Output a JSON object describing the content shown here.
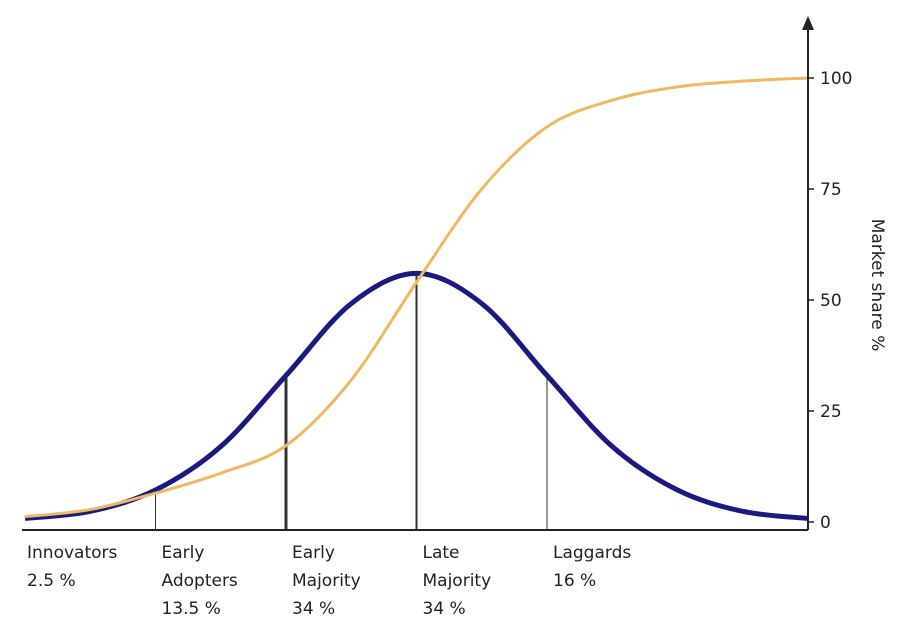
{
  "chart_data": {
    "type": "line",
    "title": "",
    "xlabel": "",
    "ylabel": "Market share %",
    "ylim": [
      0,
      100
    ],
    "y_ticks": [
      "0",
      "25",
      "50",
      "75",
      "100"
    ],
    "y_tick_values": [
      0,
      25,
      50,
      75,
      100
    ],
    "grid": false,
    "legend": "none",
    "colors": {
      "adoption_curve": "#1a1a80",
      "market_share_curve": "#f0b860",
      "axis": "#222222",
      "divider": "#333333"
    },
    "segments": [
      {
        "label": "Innovators",
        "percent": "2.5 %"
      },
      {
        "label": "Early Adopters",
        "percent": "13.5 %"
      },
      {
        "label": "Early Majority",
        "percent": "34 %"
      },
      {
        "label": "Late Majority",
        "percent": "34 %"
      },
      {
        "label": "Laggards",
        "percent": "16 %"
      }
    ],
    "series": [
      {
        "x_sigma": [
          -3.0,
          -2.5,
          -2.0,
          -1.5,
          -1.0,
          -0.5,
          0.0,
          0.5,
          1.0,
          1.5,
          2.0,
          2.5,
          3.0
        ],
        "values": [
          0.8,
          2.4,
          7.2,
          17.0,
          33.0,
          49.2,
          56.0,
          49.2,
          33.0,
          17.0,
          7.2,
          2.4,
          0.8
        ]
      },
      {
        "x_sigma": [
          -3.0,
          -2.5,
          -2.0,
          -1.5,
          -1.0,
          -0.5,
          0.0,
          0.5,
          1.0,
          1.5,
          2.0,
          2.5,
          3.0
        ],
        "values": [
          1.2,
          2.8,
          6.5,
          11.0,
          17.2,
          32.0,
          54.0,
          75.0,
          89.0,
          95.0,
          98.0,
          99.3,
          100.0
        ]
      }
    ],
    "dividers_sigma": [
      -2.0,
      -1.0,
      0.0,
      1.0
    ]
  }
}
